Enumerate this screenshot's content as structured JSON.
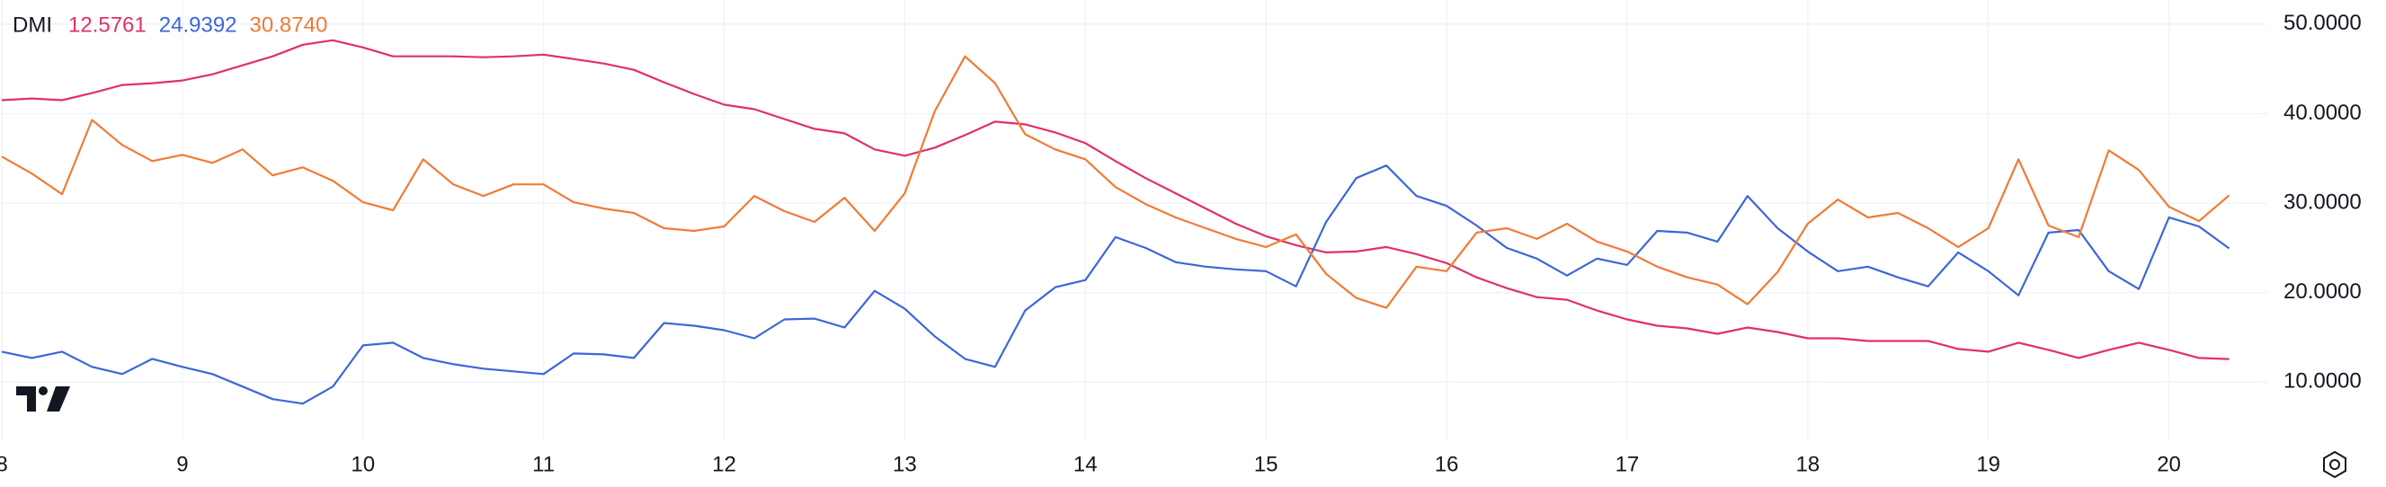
{
  "chart_data": {
    "type": "line",
    "title": "DMI",
    "categories": [
      "8",
      null,
      null,
      null,
      null,
      null,
      "9",
      null,
      null,
      null,
      null,
      null,
      "10",
      null,
      null,
      null,
      null,
      null,
      "11",
      null,
      null,
      null,
      null,
      null,
      "12",
      null,
      null,
      null,
      null,
      null,
      "13",
      null,
      null,
      null,
      null,
      null,
      "14",
      null,
      null,
      null,
      null,
      null,
      "15",
      null,
      null,
      null,
      null,
      null,
      "16",
      null,
      null,
      null,
      null,
      null,
      "17",
      null,
      null,
      null,
      null,
      null,
      "18",
      null,
      null,
      null,
      null,
      null,
      "19",
      null,
      null,
      null,
      null,
      null,
      "20",
      null,
      null
    ],
    "series": [
      {
        "name": "12.5761",
        "color": "#e0306a",
        "values": [
          41.5,
          41.7,
          41.5,
          42.3,
          43.2,
          43.4,
          43.7,
          44.4,
          45.4,
          46.4,
          47.7,
          48.2,
          47.4,
          46.4,
          46.4,
          46.4,
          46.3,
          46.4,
          46.6,
          46.1,
          45.6,
          44.9,
          43.5,
          42.2,
          41.0,
          40.5,
          39.4,
          38.3,
          37.8,
          36.0,
          35.3,
          36.2,
          37.6,
          39.1,
          38.8,
          37.9,
          36.7,
          34.7,
          32.8,
          31.1,
          29.4,
          27.7,
          26.3,
          25.3,
          24.5,
          24.6,
          25.1,
          24.3,
          23.3,
          21.7,
          20.5,
          19.5,
          19.2,
          18.0,
          17.0,
          16.3,
          16.0,
          15.4,
          16.1,
          15.6,
          14.9,
          14.9,
          14.6,
          14.6,
          14.6,
          13.7,
          13.4,
          14.4,
          13.6,
          12.7,
          13.6,
          14.4,
          13.6,
          12.7,
          12.5761
        ]
      },
      {
        "name": "24.9392",
        "color": "#3d66d9",
        "values": [
          13.4,
          12.7,
          13.4,
          11.7,
          10.9,
          12.6,
          11.7,
          10.9,
          9.5,
          8.1,
          7.6,
          9.5,
          14.1,
          14.4,
          12.7,
          12.0,
          11.5,
          11.2,
          10.9,
          13.2,
          13.1,
          12.7,
          16.6,
          16.3,
          15.8,
          14.9,
          17.0,
          17.1,
          16.1,
          20.2,
          18.2,
          15.1,
          12.6,
          11.7,
          18.0,
          20.6,
          21.4,
          26.2,
          25.0,
          23.4,
          22.9,
          22.6,
          22.4,
          20.7,
          27.9,
          32.8,
          34.2,
          30.8,
          29.7,
          27.5,
          25.0,
          23.8,
          21.9,
          23.8,
          23.1,
          26.9,
          26.7,
          25.7,
          30.8,
          27.2,
          24.6,
          22.4,
          22.9,
          21.7,
          20.7,
          24.5,
          22.4,
          19.7,
          26.7,
          27.0,
          22.4,
          20.4,
          28.4,
          27.4,
          24.9392
        ]
      },
      {
        "name": "30.8740",
        "color": "#f07b34",
        "values": [
          35.2,
          33.3,
          31.0,
          39.3,
          36.5,
          34.7,
          35.4,
          34.5,
          36.0,
          33.1,
          34.0,
          32.5,
          30.1,
          29.2,
          34.9,
          32.1,
          30.8,
          32.1,
          32.1,
          30.1,
          29.4,
          28.9,
          27.2,
          26.9,
          27.4,
          30.8,
          29.1,
          27.9,
          30.6,
          26.9,
          31.1,
          40.3,
          46.4,
          43.4,
          37.7,
          36.0,
          34.9,
          31.8,
          29.9,
          28.4,
          27.2,
          26.0,
          25.1,
          26.5,
          22.1,
          19.4,
          18.3,
          22.9,
          22.4,
          26.7,
          27.2,
          26.0,
          27.7,
          25.7,
          24.6,
          22.9,
          21.7,
          20.9,
          18.7,
          22.3,
          27.7,
          30.4,
          28.4,
          28.9,
          27.2,
          25.1,
          27.2,
          34.9,
          27.5,
          26.2,
          35.9,
          33.7,
          29.6,
          28.0,
          30.874
        ]
      }
    ],
    "ylim": [
      3.5,
      52.7
    ],
    "yticks": [
      {
        "value": 10,
        "label": "10.0000"
      },
      {
        "value": 20,
        "label": "20.0000"
      },
      {
        "value": 30,
        "label": "30.0000"
      },
      {
        "value": 40,
        "label": "40.0000"
      },
      {
        "value": 50,
        "label": "50.0000"
      }
    ],
    "grid": true
  }
}
